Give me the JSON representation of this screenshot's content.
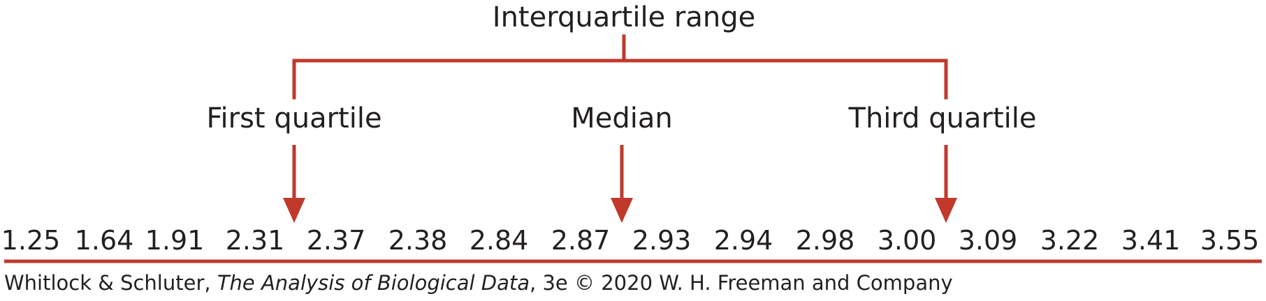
{
  "accent_color": "#c0392b",
  "labels": {
    "iqr": "Interquartile range",
    "q1": "First quartile",
    "median": "Median",
    "q3": "Third quartile"
  },
  "values": [
    "1.25",
    "1.64",
    "1.91",
    "2.31",
    "2.37",
    "2.38",
    "2.84",
    "2.87",
    "2.93",
    "2.94",
    "2.98",
    "3.00",
    "3.09",
    "3.22",
    "3.41",
    "3.55"
  ],
  "credit": {
    "authors": "Whitlock & Schluter, ",
    "book_title": "The Analysis of Biological Data",
    "edition": ", 3e © 2020 W. H. Freeman and Company"
  }
}
